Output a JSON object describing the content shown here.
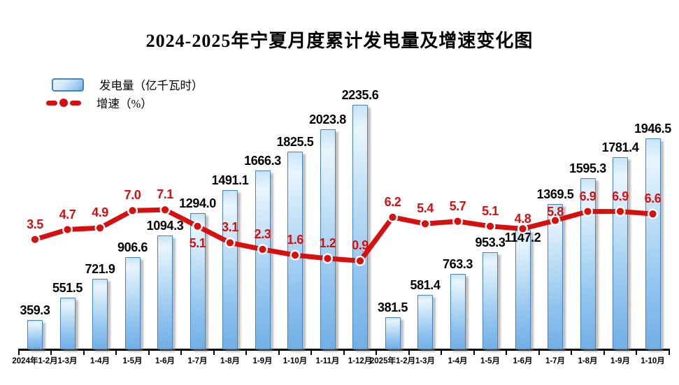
{
  "title": "2024-2025年宁夏月度累计发电量及增速变化图",
  "legend": {
    "bar_label": "发电量（亿千瓦时）",
    "line_label": "增速（%）"
  },
  "colors": {
    "line_red": "#d6100f",
    "bar_border": "#4583c4",
    "bar_fill_light": "#e9f5fd",
    "bar_fill_dark": "#72afe5",
    "axis_black": "#000000"
  },
  "chart_data": {
    "type": "bar",
    "subtype": "bar-line-combo",
    "title": "2024-2025年宁夏月度累计发电量及增速变化图",
    "categories": [
      "2024年1-2月",
      "1-3月",
      "1-4月",
      "1-5月",
      "1-6月",
      "1-7月",
      "1-8月",
      "1-9月",
      "1-10月",
      "1-11月",
      "1-12月",
      "2025年1-2月",
      "1-3月",
      "1-4月",
      "1-5月",
      "1-6月",
      "1-7月",
      "1-8月",
      "1-9月",
      "1-10月"
    ],
    "series": [
      {
        "name": "发电量（亿千瓦时）",
        "type": "bar",
        "values": [
          359.3,
          551.5,
          721.9,
          906.6,
          1094.3,
          1294.0,
          1491.1,
          1666.3,
          1825.5,
          2023.8,
          2235.6,
          381.5,
          581.4,
          763.3,
          953.3,
          1147.2,
          1369.5,
          1595.3,
          1781.4,
          1946.5
        ]
      },
      {
        "name": "增速（%）",
        "type": "line",
        "values": [
          3.5,
          4.7,
          4.9,
          7.0,
          7.1,
          5.1,
          3.1,
          2.3,
          1.6,
          1.2,
          0.9,
          6.2,
          5.4,
          5.7,
          5.1,
          4.8,
          5.8,
          6.9,
          6.9,
          6.6
        ]
      }
    ],
    "value_label_decimals": 1,
    "grid": false,
    "value_axes_hidden": true,
    "legend_position": "top-left",
    "bar_label_dy": {
      "15": 25
    },
    "line_label_dy": {
      "5": 46,
      "15": 8,
      "16": 9
    }
  }
}
